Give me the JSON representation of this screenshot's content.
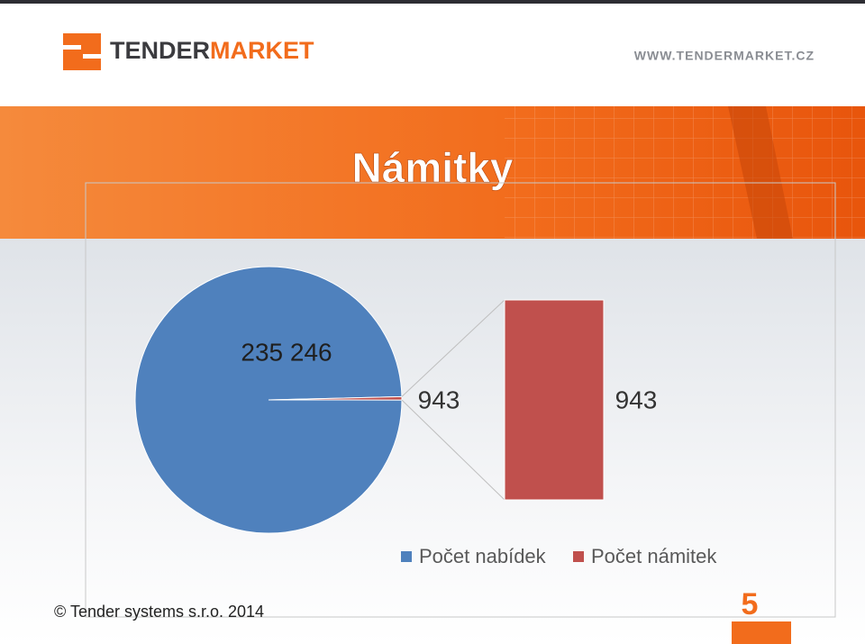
{
  "header": {
    "logo_dark": "TENDER",
    "logo_accent": "MARKET",
    "url": "WWW.TENDERMARKET.CZ"
  },
  "chart_data": {
    "type": "pie",
    "subtype": "bar-of-pie",
    "title": "Námitky",
    "categories": [
      "Počet nabídek",
      "Počet námitek"
    ],
    "values": [
      235246,
      943
    ],
    "value_labels": [
      "235 246",
      "943"
    ],
    "colors": [
      "#4f81bd",
      "#c0504d"
    ],
    "legend": "bottom"
  },
  "footer": {
    "copyright": "© Tender systems s.r.o. 2014",
    "page": "5"
  }
}
